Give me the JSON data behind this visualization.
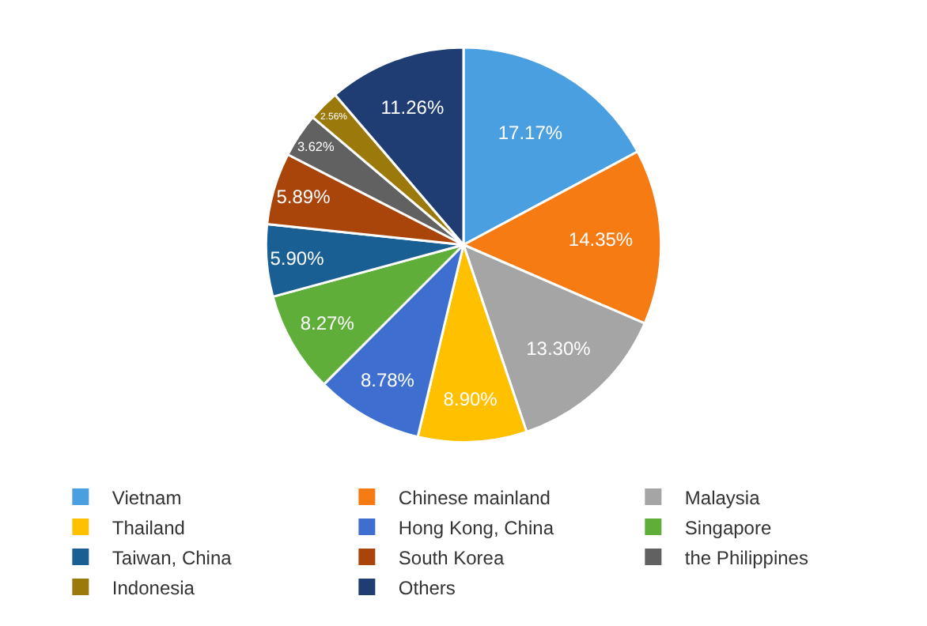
{
  "chart_data": {
    "type": "pie",
    "categories": [
      "Vietnam",
      "Chinese mainland",
      "Malaysia",
      "Thailand",
      "Hong Kong, China",
      "Singapore",
      "Taiwan, China",
      "South Korea",
      "the Philippines",
      "Indonesia",
      "Others"
    ],
    "values": [
      17.17,
      14.35,
      13.3,
      8.9,
      8.78,
      8.27,
      5.9,
      5.89,
      3.62,
      2.56,
      11.26
    ],
    "value_labels": [
      "17.17%",
      "14.35%",
      "13.30%",
      "8.90%",
      "8.78%",
      "8.27%",
      "5.90%",
      "5.89%",
      "3.62%",
      "2.56%",
      "11.26%"
    ],
    "colors": [
      "#4a9fe0",
      "#f67b13",
      "#a5a5a5",
      "#ffc000",
      "#3e6fd0",
      "#5fae3a",
      "#1a5f93",
      "#a9440a",
      "#616161",
      "#9b7a0b",
      "#1f3d73"
    ],
    "legend": "bottom"
  }
}
